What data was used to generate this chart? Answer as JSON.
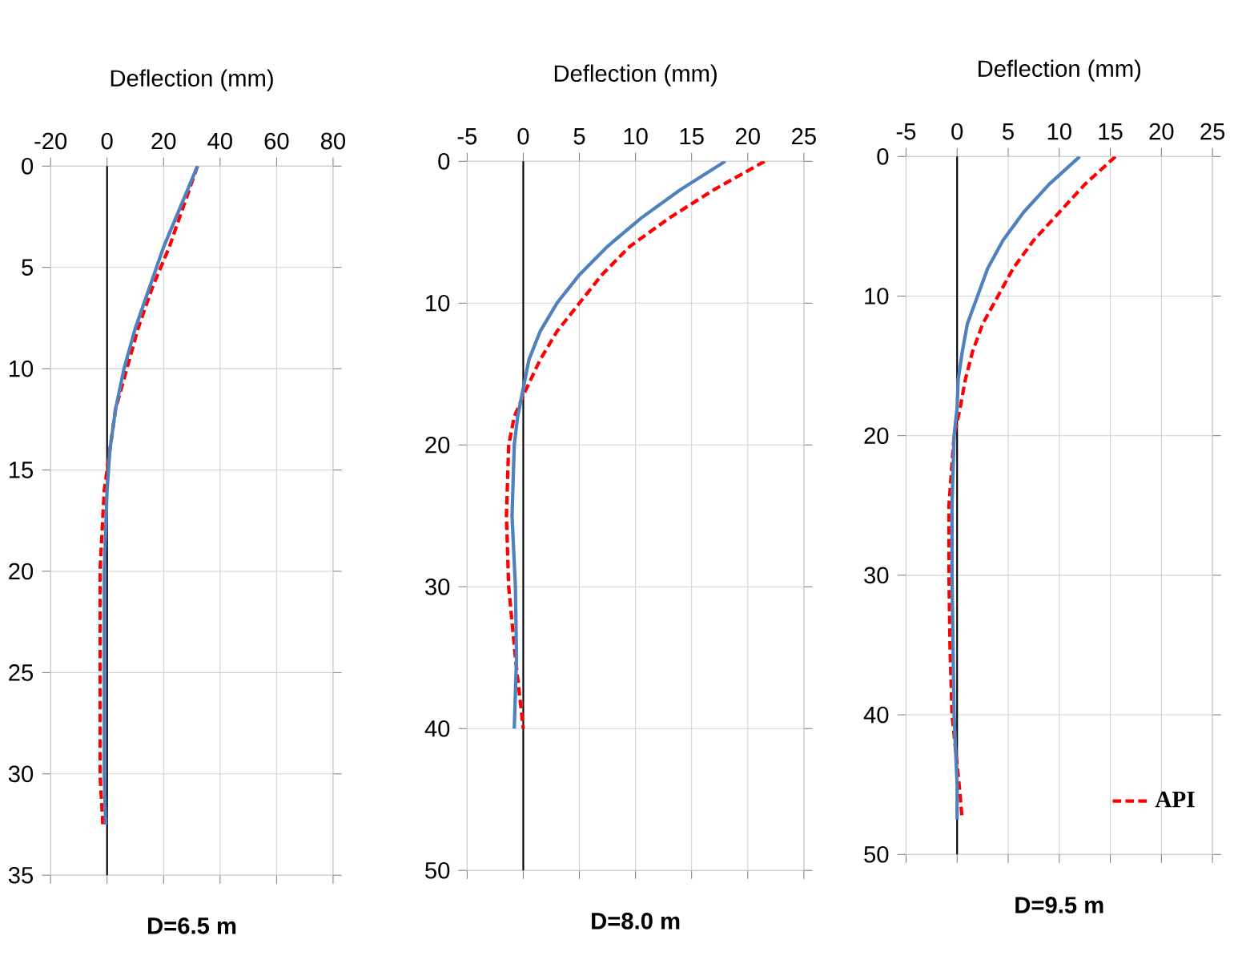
{
  "chart_data": [
    {
      "type": "line",
      "title": "D=6.5 m",
      "xlabel": "Deflection (mm)",
      "xlim": [
        -20,
        80
      ],
      "xticks": [
        -20,
        0,
        20,
        40,
        60,
        80
      ],
      "ylim": [
        35,
        0
      ],
      "yticks": [
        0,
        5,
        10,
        15,
        20,
        25,
        30,
        35
      ],
      "grid": true,
      "marker": "none",
      "series": [
        {
          "color": "#ff0000",
          "line_style": "dashed",
          "x": [
            32,
            27,
            22,
            16,
            11,
            7,
            3,
            1,
            -1,
            -2.5,
            -2.5,
            -2.5,
            -1.5
          ],
          "values": [
            0,
            2,
            4,
            6,
            8,
            10,
            12,
            14,
            16,
            20,
            25,
            30,
            32.5
          ]
        },
        {
          "color": "#4f81bd",
          "line_style": "solid",
          "x": [
            32,
            26,
            20,
            15,
            10,
            6,
            3,
            1,
            0,
            -1,
            -1,
            -1,
            -0.5
          ],
          "values": [
            0,
            2,
            4,
            6,
            8,
            10,
            12,
            14,
            16,
            20,
            25,
            30,
            32.5
          ]
        }
      ]
    },
    {
      "type": "line",
      "title": "D=8.0 m",
      "xlabel": "Deflection (mm)",
      "xlim": [
        -5,
        25
      ],
      "xticks": [
        -5,
        0,
        5,
        10,
        15,
        20,
        25
      ],
      "ylim": [
        50,
        0
      ],
      "yticks": [
        0,
        10,
        20,
        30,
        40,
        50
      ],
      "grid": true,
      "marker": "none",
      "series": [
        {
          "color": "#ff0000",
          "line_style": "dashed",
          "x": [
            21.5,
            17,
            13,
            9.5,
            7,
            5,
            3,
            1.5,
            0.3,
            -0.8,
            -1.3,
            -1.5,
            -1.3,
            -0.7,
            0
          ],
          "values": [
            0,
            2,
            4,
            6,
            8,
            10,
            12,
            14,
            16,
            18,
            20,
            25,
            30,
            35,
            40
          ]
        },
        {
          "color": "#4f81bd",
          "line_style": "solid",
          "x": [
            18,
            14,
            10.5,
            7.5,
            5,
            3,
            1.5,
            0.5,
            0,
            -0.5,
            -0.8,
            -1,
            -0.7,
            -0.6,
            -0.8
          ],
          "values": [
            0,
            2,
            4,
            6,
            8,
            10,
            12,
            14,
            16,
            18,
            20,
            25,
            30,
            35,
            40
          ]
        }
      ]
    },
    {
      "type": "line",
      "title": "D=9.5 m",
      "xlabel": "Deflection (mm)",
      "xlim": [
        -5,
        25
      ],
      "xticks": [
        -5,
        0,
        5,
        10,
        15,
        20,
        25
      ],
      "ylim": [
        50,
        0
      ],
      "yticks": [
        0,
        10,
        20,
        30,
        40,
        50
      ],
      "grid": true,
      "marker": "none",
      "legend": "bottom right",
      "series": [
        {
          "name": "API",
          "color": "#ff0000",
          "line_style": "dashed",
          "x": [
            15.5,
            12.5,
            10,
            7.5,
            5.5,
            4,
            2.5,
            1.5,
            0.8,
            0.3,
            -0.3,
            -0.8,
            -0.8,
            -0.7,
            -0.5,
            0.2,
            0.5
          ],
          "values": [
            0,
            2,
            4,
            6,
            8,
            10,
            12,
            14,
            16,
            18,
            20,
            25,
            30,
            35,
            40,
            45,
            47.5
          ]
        },
        {
          "color": "#4f81bd",
          "line_style": "solid",
          "x": [
            12,
            9,
            6.5,
            4.5,
            3,
            2,
            1,
            0.5,
            0.1,
            0,
            -0.3,
            -0.5,
            -0.5,
            -0.4,
            -0.3,
            0,
            0
          ],
          "values": [
            0,
            2,
            4,
            6,
            8,
            10,
            12,
            14,
            16,
            18,
            20,
            25,
            30,
            35,
            40,
            45,
            47.5
          ]
        }
      ]
    }
  ]
}
